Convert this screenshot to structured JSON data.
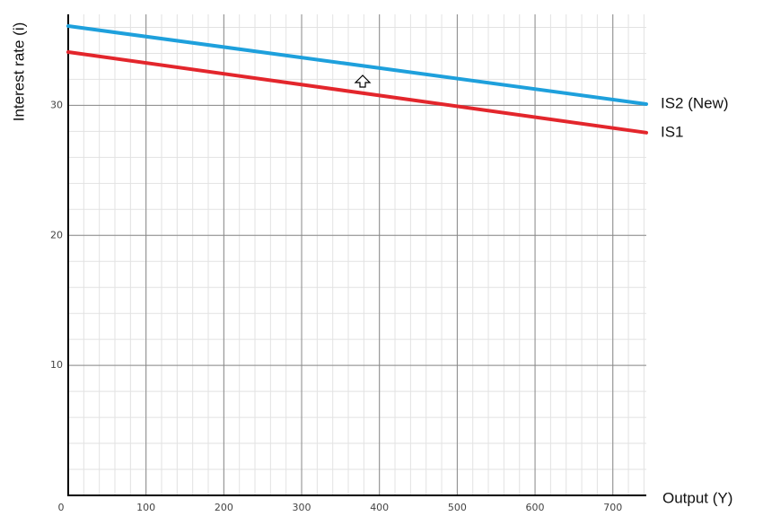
{
  "chart_data": {
    "type": "line",
    "x_label": "Output (Y)",
    "y_label": "Interest rate (i)",
    "x": [
      0,
      743
    ],
    "series": [
      {
        "name": "IS2 (New)",
        "color": "#1ea0dc",
        "values": [
          36.1,
          30.1
        ]
      },
      {
        "name": "IS1",
        "color": "#e3262c",
        "values": [
          34.1,
          27.9
        ]
      }
    ],
    "xlim": [
      0,
      743
    ],
    "ylim": [
      0,
      37
    ],
    "xticks": [
      0,
      100,
      200,
      300,
      400,
      500,
      600,
      700
    ],
    "yticks": [
      10,
      20,
      30
    ],
    "grid": true,
    "minor_grid_divisions": 5
  }
}
